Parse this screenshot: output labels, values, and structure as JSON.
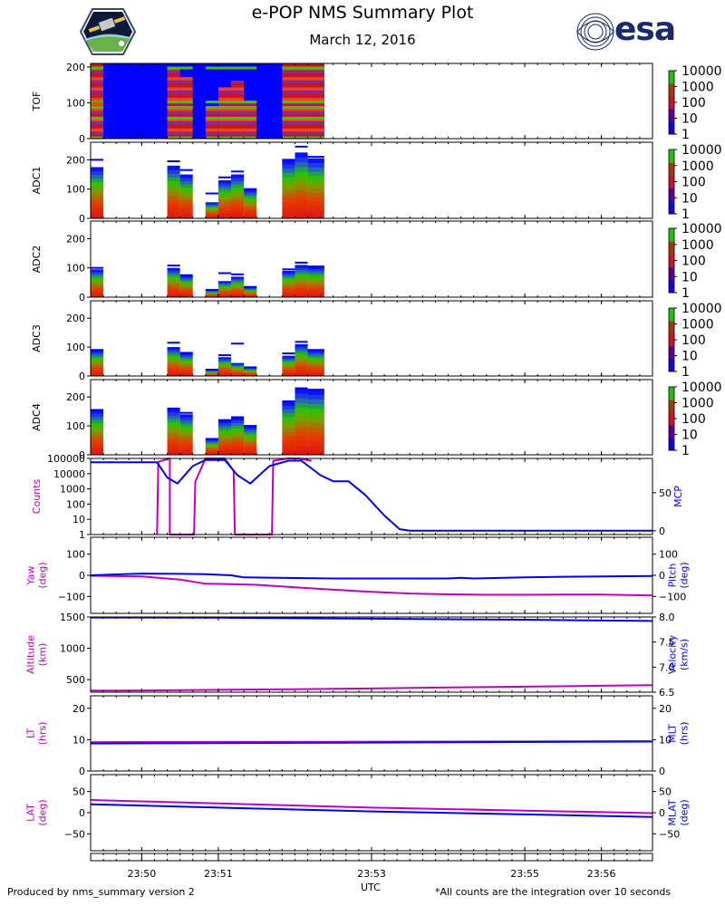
{
  "header": {
    "title": "e-POP NMS Summary Plot",
    "date": "March 12, 2016",
    "logo_left": "e-POP mission emblem",
    "logo_right_text": "esa"
  },
  "footer": {
    "left": "Produced by nms_summary version 2",
    "center": "UTC",
    "right": "*All counts are the integration over 10 seconds"
  },
  "colors": {
    "magenta": "#c000c0",
    "blue": "#0000ee",
    "esa": "#1a2a6c",
    "spectro_bg": "#0000ff"
  },
  "colorbar": {
    "ticks": [
      "10000",
      "1000",
      "100",
      "10",
      "1"
    ]
  },
  "chart_data": [
    {
      "type": "heatmap",
      "ylabel": "TOF",
      "ylim": [
        0,
        210
      ],
      "yticks": [
        "0",
        "100",
        "200"
      ],
      "x_range": [
        "23:49:20",
        "23:56:40"
      ],
      "data_end": "23:52:23",
      "bright_bands_mass": [
        0,
        55,
        85,
        100,
        195
      ],
      "colorbar_ticks": [
        "10000",
        "1000",
        "100",
        "10",
        "1"
      ]
    },
    {
      "type": "bar",
      "ylabel": "ADC1",
      "ylim": [
        0,
        260
      ],
      "yticks": [
        "0",
        "100",
        "200"
      ],
      "bins": [
        {
          "t0": "23:49:20",
          "t1": "23:49:30",
          "v": 175,
          "cap": 200
        },
        {
          "t0": "23:50:20",
          "t1": "23:50:30",
          "v": 180,
          "cap": 195
        },
        {
          "t0": "23:50:30",
          "t1": "23:50:40",
          "v": 150,
          "cap": 165
        },
        {
          "t0": "23:50:50",
          "t1": "23:51:00",
          "v": 55,
          "cap": 85
        },
        {
          "t0": "23:51:00",
          "t1": "23:51:10",
          "v": 130,
          "cap": 140
        },
        {
          "t0": "23:51:10",
          "t1": "23:51:20",
          "v": 150,
          "cap": 160
        },
        {
          "t0": "23:51:20",
          "t1": "23:51:30",
          "v": 100,
          "cap": 100
        },
        {
          "t0": "23:51:50",
          "t1": "23:52:00",
          "v": 200,
          "cap": 200
        },
        {
          "t0": "23:52:00",
          "t1": "23:52:10",
          "v": 225,
          "cap": 245
        },
        {
          "t0": "23:52:10",
          "t1": "23:52:23",
          "v": 205,
          "cap": 210
        }
      ]
    },
    {
      "type": "bar",
      "ylabel": "ADC2",
      "ylim": [
        0,
        260
      ],
      "yticks": [
        "0",
        "100",
        "200"
      ],
      "bins": [
        {
          "t0": "23:49:20",
          "t1": "23:49:30",
          "v": 95,
          "cap": 100
        },
        {
          "t0": "23:50:20",
          "t1": "23:50:30",
          "v": 100,
          "cap": 108
        },
        {
          "t0": "23:50:30",
          "t1": "23:50:40",
          "v": 75,
          "cap": 75
        },
        {
          "t0": "23:50:50",
          "t1": "23:51:00",
          "v": 25,
          "cap": 25
        },
        {
          "t0": "23:51:00",
          "t1": "23:51:10",
          "v": 55,
          "cap": 82
        },
        {
          "t0": "23:51:10",
          "t1": "23:51:20",
          "v": 70,
          "cap": 78
        },
        {
          "t0": "23:51:20",
          "t1": "23:51:30",
          "v": 35,
          "cap": 35
        },
        {
          "t0": "23:51:50",
          "t1": "23:52:00",
          "v": 90,
          "cap": 95
        },
        {
          "t0": "23:52:00",
          "t1": "23:52:10",
          "v": 110,
          "cap": 118
        },
        {
          "t0": "23:52:10",
          "t1": "23:52:23",
          "v": 105,
          "cap": 105
        }
      ]
    },
    {
      "type": "bar",
      "ylabel": "ADC3",
      "ylim": [
        0,
        260
      ],
      "yticks": [
        "0",
        "100",
        "200"
      ],
      "bins": [
        {
          "t0": "23:49:20",
          "t1": "23:49:30",
          "v": 90,
          "cap": 90
        },
        {
          "t0": "23:50:20",
          "t1": "23:50:30",
          "v": 100,
          "cap": 115
        },
        {
          "t0": "23:50:30",
          "t1": "23:50:40",
          "v": 80,
          "cap": 80
        },
        {
          "t0": "23:50:50",
          "t1": "23:51:00",
          "v": 22,
          "cap": 22
        },
        {
          "t0": "23:51:00",
          "t1": "23:51:10",
          "v": 65,
          "cap": 72
        },
        {
          "t0": "23:51:10",
          "t1": "23:51:20",
          "v": 45,
          "cap": 112
        },
        {
          "t0": "23:51:20",
          "t1": "23:51:30",
          "v": 30,
          "cap": 30
        },
        {
          "t0": "23:51:50",
          "t1": "23:52:00",
          "v": 70,
          "cap": 78
        },
        {
          "t0": "23:52:00",
          "t1": "23:52:10",
          "v": 110,
          "cap": 118
        },
        {
          "t0": "23:52:10",
          "t1": "23:52:23",
          "v": 90,
          "cap": 90
        }
      ]
    },
    {
      "type": "bar",
      "ylabel": "ADC4",
      "ylim": [
        0,
        260
      ],
      "yticks": [
        "0",
        "100",
        "200"
      ],
      "bins": [
        {
          "t0": "23:49:20",
          "t1": "23:49:30",
          "v": 155,
          "cap": 155
        },
        {
          "t0": "23:50:20",
          "t1": "23:50:30",
          "v": 160,
          "cap": 160
        },
        {
          "t0": "23:50:30",
          "t1": "23:50:40",
          "v": 140,
          "cap": 145
        },
        {
          "t0": "23:50:50",
          "t1": "23:51:00",
          "v": 55,
          "cap": 55
        },
        {
          "t0": "23:51:00",
          "t1": "23:51:10",
          "v": 120,
          "cap": 120
        },
        {
          "t0": "23:51:10",
          "t1": "23:51:20",
          "v": 130,
          "cap": 130
        },
        {
          "t0": "23:51:20",
          "t1": "23:51:30",
          "v": 100,
          "cap": 100
        },
        {
          "t0": "23:51:50",
          "t1": "23:52:00",
          "v": 185,
          "cap": 185
        },
        {
          "t0": "23:52:00",
          "t1": "23:52:10",
          "v": 230,
          "cap": 230
        },
        {
          "t0": "23:52:10",
          "t1": "23:52:23",
          "v": 225,
          "cap": 225
        }
      ]
    },
    {
      "type": "line",
      "left_label": "Counts",
      "right_label": "MCP",
      "left_scale": "log",
      "left_ylim": [
        1,
        100000
      ],
      "left_ticks": [
        "1",
        "10",
        "100",
        "1000",
        "10000",
        "100000"
      ],
      "right_ylim": [
        -5,
        95
      ],
      "right_ticks": [
        "0",
        "50"
      ],
      "series": [
        {
          "axis": "left",
          "color": "#c000c0",
          "points": [
            [
              "23:50:12",
              1
            ],
            [
              "23:50:13",
              60000
            ],
            [
              "23:50:22",
              100000
            ],
            [
              "23:50:22",
              1
            ],
            [
              "23:50:41",
              1
            ],
            [
              "23:50:42",
              3000
            ],
            [
              "23:50:50",
              100000
            ],
            [
              "23:51:05",
              100000
            ],
            [
              "23:51:12",
              15000
            ],
            [
              "23:51:13",
              1
            ],
            [
              "23:51:42",
              1
            ],
            [
              "23:51:43",
              70000
            ],
            [
              "23:51:55",
              100000
            ],
            [
              "23:52:03",
              100000
            ],
            [
              "23:52:13",
              70000
            ]
          ]
        },
        {
          "axis": "right",
          "color": "#0000ee",
          "points": [
            [
              "23:49:20",
              90
            ],
            [
              "23:50:12",
              90
            ],
            [
              "23:50:20",
              70
            ],
            [
              "23:50:28",
              62
            ],
            [
              "23:50:40",
              85
            ],
            [
              "23:50:50",
              93
            ],
            [
              "23:51:05",
              93
            ],
            [
              "23:51:15",
              73
            ],
            [
              "23:51:25",
              62
            ],
            [
              "23:51:40",
              85
            ],
            [
              "23:51:55",
              92
            ],
            [
              "23:52:05",
              92
            ],
            [
              "23:52:20",
              73
            ],
            [
              "23:52:30",
              65
            ],
            [
              "23:52:42",
              65
            ],
            [
              "23:52:55",
              47
            ],
            [
              "23:53:10",
              20
            ],
            [
              "23:53:22",
              2
            ],
            [
              "23:53:30",
              0
            ],
            [
              "23:56:40",
              0
            ]
          ]
        }
      ]
    },
    {
      "type": "line",
      "left_label": "Yaw\n(deg)",
      "right_label": "Pitch\n(deg)",
      "left_ylim": [
        -180,
        180
      ],
      "left_ticks": [
        "-100",
        "0",
        "100"
      ],
      "right_ylim": [
        -180,
        180
      ],
      "right_ticks": [
        "-100",
        "0",
        "100"
      ],
      "series": [
        {
          "axis": "left",
          "color": "#c000c0",
          "points": [
            [
              "23:49:20",
              -2
            ],
            [
              "23:50:00",
              -5
            ],
            [
              "23:50:30",
              -20
            ],
            [
              "23:50:50",
              -40
            ],
            [
              "23:51:10",
              -42
            ],
            [
              "23:51:30",
              -45
            ],
            [
              "23:52:00",
              -57
            ],
            [
              "23:52:30",
              -68
            ],
            [
              "23:53:00",
              -78
            ],
            [
              "23:53:30",
              -86
            ],
            [
              "23:54:00",
              -90
            ],
            [
              "23:54:30",
              -92
            ],
            [
              "23:55:00",
              -92
            ],
            [
              "23:55:30",
              -91
            ],
            [
              "23:56:00",
              -91
            ],
            [
              "23:56:40",
              -95
            ]
          ]
        },
        {
          "axis": "right",
          "color": "#0000ee",
          "points": [
            [
              "23:49:20",
              0
            ],
            [
              "23:49:45",
              5
            ],
            [
              "23:50:00",
              8
            ],
            [
              "23:50:30",
              7
            ],
            [
              "23:50:50",
              5
            ],
            [
              "23:51:10",
              0
            ],
            [
              "23:51:20",
              -10
            ],
            [
              "23:52:00",
              -13
            ],
            [
              "23:52:30",
              -15
            ],
            [
              "23:53:00",
              -15
            ],
            [
              "23:53:30",
              -15
            ],
            [
              "23:54:00",
              -15
            ],
            [
              "23:54:10",
              -12
            ],
            [
              "23:54:20",
              -15
            ],
            [
              "23:55:00",
              -10
            ],
            [
              "23:55:30",
              -7
            ],
            [
              "23:56:00",
              -5
            ],
            [
              "23:56:40",
              -3
            ]
          ]
        }
      ]
    },
    {
      "type": "line",
      "left_label": "Altitude\n(km)",
      "right_label": "Velocity\n(km/s)",
      "left_ylim": [
        300,
        1500
      ],
      "left_ticks": [
        "500",
        "1000",
        "1500"
      ],
      "right_ylim": [
        6.5,
        8.0
      ],
      "right_ticks": [
        "6.5",
        "7.0",
        "7.5",
        "8.0"
      ],
      "series": [
        {
          "axis": "left",
          "color": "#c000c0",
          "points": [
            [
              "23:49:20",
              325
            ],
            [
              "23:50:00",
              328
            ],
            [
              "23:51:00",
              338
            ],
            [
              "23:52:00",
              348
            ],
            [
              "23:53:00",
              360
            ],
            [
              "23:54:00",
              375
            ],
            [
              "23:55:00",
              388
            ],
            [
              "23:56:00",
              402
            ],
            [
              "23:56:40",
              412
            ]
          ]
        },
        {
          "axis": "right",
          "color": "#0000ee",
          "points": [
            [
              "23:49:20",
              7.99
            ],
            [
              "23:50:00",
              7.99
            ],
            [
              "23:51:00",
              7.985
            ],
            [
              "23:52:00",
              7.975
            ],
            [
              "23:53:00",
              7.965
            ],
            [
              "23:54:00",
              7.955
            ],
            [
              "23:55:00",
              7.945
            ],
            [
              "23:56:00",
              7.93
            ],
            [
              "23:56:40",
              7.92
            ]
          ]
        }
      ]
    },
    {
      "type": "line",
      "left_label": "LT\n(hrs)",
      "right_label": "MLT\n(hrs)",
      "left_ylim": [
        0,
        24
      ],
      "left_ticks": [
        "0",
        "10",
        "20"
      ],
      "right_ylim": [
        0,
        24
      ],
      "right_ticks": [
        "0",
        "10",
        "20"
      ],
      "series": [
        {
          "axis": "left",
          "color": "#c000c0",
          "points": [
            [
              "23:49:20",
              9.2
            ],
            [
              "23:56:40",
              9.5
            ]
          ]
        },
        {
          "axis": "right",
          "color": "#0000ee",
          "points": [
            [
              "23:49:20",
              8.8
            ],
            [
              "23:52:00",
              9.0
            ],
            [
              "23:56:40",
              9.4
            ]
          ]
        }
      ]
    },
    {
      "type": "line",
      "left_label": "LAT\n(deg)",
      "right_label": "MLAT\n(deg)",
      "left_ylim": [
        -90,
        90
      ],
      "left_ticks": [
        "-50",
        "0",
        "50"
      ],
      "right_ylim": [
        -90,
        90
      ],
      "right_ticks": [
        "-50",
        "0",
        "50"
      ],
      "series": [
        {
          "axis": "left",
          "color": "#c000c0",
          "points": [
            [
              "23:49:20",
              30
            ],
            [
              "23:51:00",
              22
            ],
            [
              "23:53:00",
              12
            ],
            [
              "23:55:00",
              5
            ],
            [
              "23:56:40",
              -1
            ]
          ]
        },
        {
          "axis": "right",
          "color": "#0000ee",
          "points": [
            [
              "23:49:20",
              20
            ],
            [
              "23:51:00",
              12
            ],
            [
              "23:53:00",
              3
            ],
            [
              "23:55:00",
              -4
            ],
            [
              "23:56:40",
              -10
            ]
          ]
        }
      ]
    },
    {
      "type": "line",
      "xlabel": "UTC",
      "xticks": [
        "23:50",
        "23:51",
        "23:53",
        "23:55",
        "23:56"
      ],
      "xtick_times": [
        "23:50:00",
        "23:51:00",
        "23:53:00",
        "23:55:00",
        "23:56:00"
      ],
      "x_range": [
        "23:49:20",
        "23:56:40"
      ]
    }
  ]
}
